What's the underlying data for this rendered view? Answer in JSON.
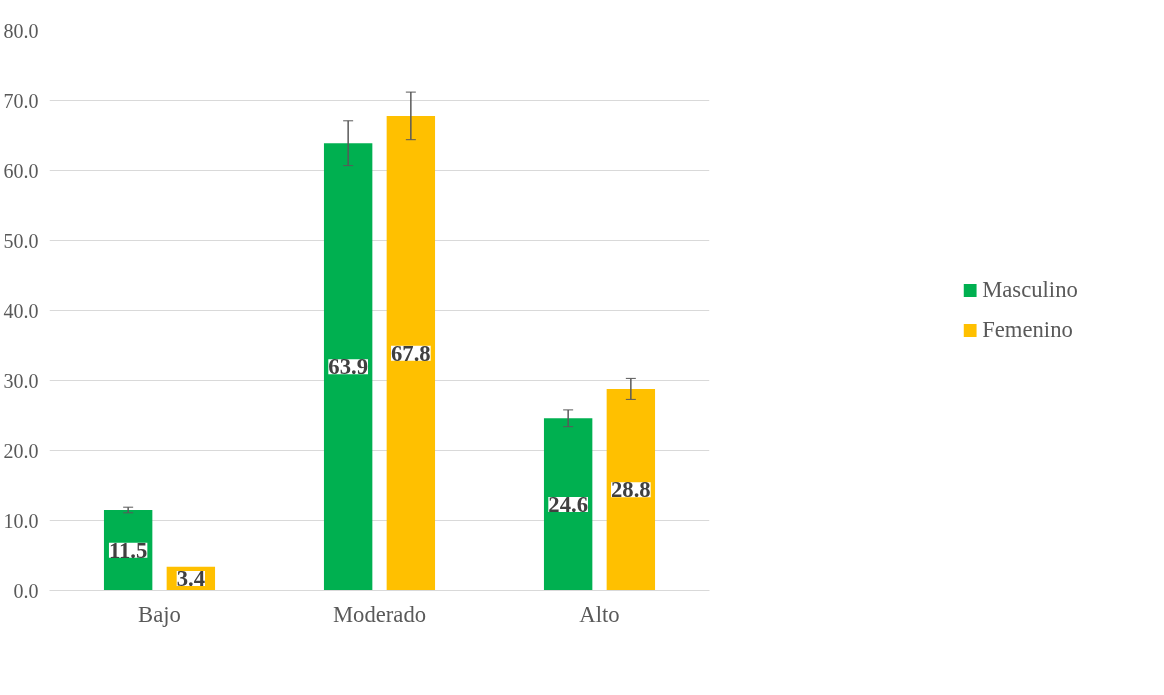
{
  "chart_data": {
    "type": "bar",
    "categories": [
      "Bajo",
      "Moderado",
      "Alto"
    ],
    "series": [
      {
        "name": "Masculino",
        "color": "#00b050",
        "values": [
          11.5,
          63.9,
          24.6
        ],
        "errors": [
          0.4,
          3.2,
          1.2
        ]
      },
      {
        "name": "Femenino",
        "color": "#ffc000",
        "values": [
          3.4,
          67.8,
          28.8
        ],
        "errors": [
          null,
          3.4,
          1.5
        ]
      }
    ],
    "ylim": [
      0,
      80
    ],
    "yticks": [
      {
        "value": 0,
        "label": "0.0"
      },
      {
        "value": 10,
        "label": "10.0"
      },
      {
        "value": 20,
        "label": "20.0"
      },
      {
        "value": 30,
        "label": "30.0"
      },
      {
        "value": 40,
        "label": "40.0"
      },
      {
        "value": 50,
        "label": "50.0"
      },
      {
        "value": 60,
        "label": "60.0"
      },
      {
        "value": 70,
        "label": "70.0"
      },
      {
        "value": 80,
        "label": "80.0"
      }
    ],
    "grid": "y",
    "legend": "right",
    "data_labels": true
  }
}
